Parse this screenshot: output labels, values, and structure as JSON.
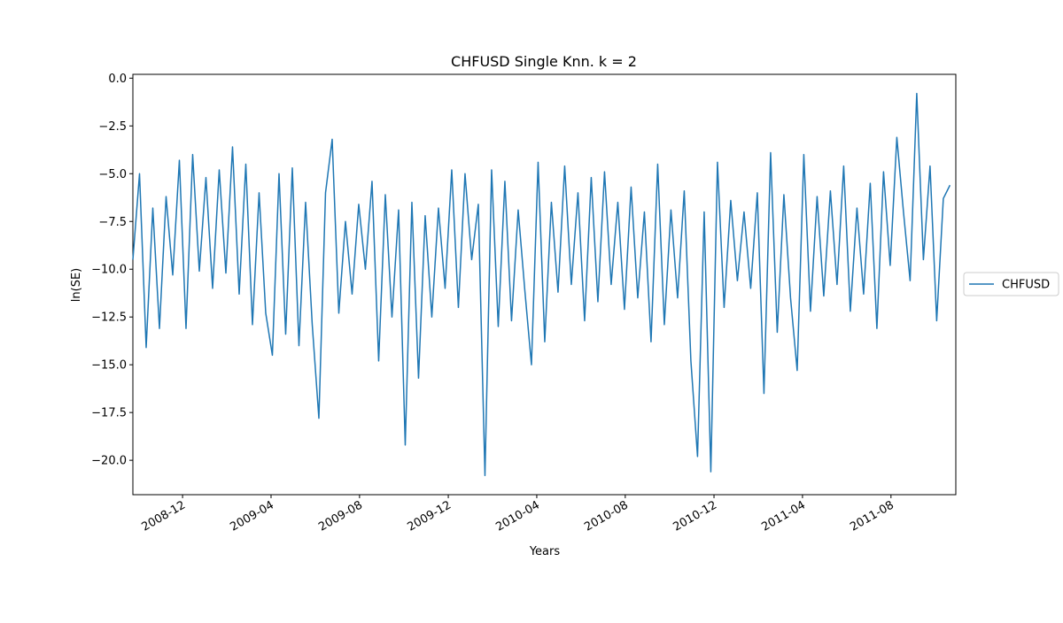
{
  "chart_data": {
    "type": "line",
    "title": "CHFUSD Single Knn. k = 2",
    "x_label": "Years",
    "y_label": "ln(SE)",
    "x": [
      2008.73,
      2008.755,
      2008.78,
      2008.805,
      2008.83,
      2008.855,
      2008.88,
      2008.905,
      2008.93,
      2008.955,
      2008.98,
      2009.005,
      2009.03,
      2009.055,
      2009.08,
      2009.105,
      2009.13,
      2009.155,
      2009.18,
      2009.205,
      2009.23,
      2009.255,
      2009.28,
      2009.305,
      2009.33,
      2009.355,
      2009.38,
      2009.405,
      2009.43,
      2009.455,
      2009.48,
      2009.505,
      2009.53,
      2009.555,
      2009.58,
      2009.605,
      2009.63,
      2009.655,
      2009.68,
      2009.705,
      2009.73,
      2009.755,
      2009.78,
      2009.805,
      2009.83,
      2009.855,
      2009.88,
      2009.905,
      2009.93,
      2009.955,
      2009.98,
      2010.005,
      2010.03,
      2010.055,
      2010.08,
      2010.105,
      2010.13,
      2010.155,
      2010.18,
      2010.205,
      2010.23,
      2010.255,
      2010.28,
      2010.305,
      2010.33,
      2010.355,
      2010.38,
      2010.405,
      2010.43,
      2010.455,
      2010.48,
      2010.505,
      2010.53,
      2010.555,
      2010.58,
      2010.605,
      2010.63,
      2010.655,
      2010.68,
      2010.705,
      2010.73,
      2010.755,
      2010.78,
      2010.805,
      2010.83,
      2010.855,
      2010.88,
      2010.905,
      2010.93,
      2010.955,
      2010.98,
      2011.005,
      2011.03,
      2011.055,
      2011.08,
      2011.105,
      2011.13,
      2011.155,
      2011.18,
      2011.205,
      2011.23,
      2011.255,
      2011.28,
      2011.305,
      2011.33,
      2011.355,
      2011.38,
      2011.405,
      2011.43,
      2011.455,
      2011.48,
      2011.505,
      2011.53,
      2011.555,
      2011.58,
      2011.605,
      2011.63,
      2011.655,
      2011.68,
      2011.705,
      2011.73,
      2011.755,
      2011.78,
      2011.805
    ],
    "series": [
      {
        "name": "CHFUSD",
        "color": "#1f77b4",
        "values": [
          -9.5,
          -5,
          -14.1,
          -6.8,
          -13.1,
          -6.2,
          -10.3,
          -4.3,
          -13.1,
          -4,
          -10.1,
          -5.2,
          -11,
          -4.8,
          -10.2,
          -3.6,
          -11.3,
          -4.5,
          -12.9,
          -6,
          -12.3,
          -14.5,
          -5,
          -13.4,
          -4.7,
          -14,
          -6.5,
          -12.9,
          -17.8,
          -6,
          -3.2,
          -12.3,
          -7.5,
          -11.3,
          -6.6,
          -10,
          -5.4,
          -14.8,
          -6.1,
          -12.5,
          -6.9,
          -19.2,
          -6.5,
          -15.7,
          -7.2,
          -12.5,
          -6.8,
          -11,
          -4.8,
          -12,
          -5,
          -9.5,
          -6.6,
          -20.8,
          -4.8,
          -13,
          -5.4,
          -12.7,
          -6.9,
          -11.1,
          -15,
          -4.4,
          -13.8,
          -6.5,
          -11.2,
          -4.6,
          -10.8,
          -6,
          -12.7,
          -5.2,
          -11.7,
          -4.9,
          -10.8,
          -6.5,
          -12.1,
          -5.7,
          -11.5,
          -7,
          -13.8,
          -4.5,
          -12.9,
          -6.9,
          -11.5,
          -5.9,
          -14.8,
          -19.8,
          -7,
          -20.6,
          -4.4,
          -12,
          -6.4,
          -10.6,
          -7,
          -11,
          -6,
          -16.5,
          -3.9,
          -13.3,
          -6.1,
          -11.5,
          -15.3,
          -4,
          -12.2,
          -6.2,
          -11.4,
          -5.9,
          -10.8,
          -4.6,
          -12.2,
          -6.8,
          -11.3,
          -5.5,
          -13.1,
          -4.9,
          -9.8,
          -3.1,
          -7,
          -10.6,
          -0.8,
          -9.5,
          -4.6,
          -12.7,
          -6.3,
          -5.6
        ]
      }
    ],
    "xlim": [
      2008.73,
      2011.827
    ],
    "xticks": [
      {
        "value": 2008.917,
        "label": "2008-12"
      },
      {
        "value": 2009.25,
        "label": "2009-04"
      },
      {
        "value": 2009.583,
        "label": "2009-08"
      },
      {
        "value": 2009.917,
        "label": "2009-12"
      },
      {
        "value": 2010.25,
        "label": "2010-04"
      },
      {
        "value": 2010.583,
        "label": "2010-08"
      },
      {
        "value": 2010.917,
        "label": "2010-12"
      },
      {
        "value": 2011.25,
        "label": "2011-04"
      },
      {
        "value": 2011.583,
        "label": "2011-08"
      }
    ],
    "ylim": [
      -21.8,
      0.2
    ],
    "yticks": [
      {
        "value": 0,
        "label": "0.0"
      },
      {
        "value": -2.5,
        "label": "−2.5"
      },
      {
        "value": -5,
        "label": "−5.0"
      },
      {
        "value": -7.5,
        "label": "−7.5"
      },
      {
        "value": -10,
        "label": "−10.0"
      },
      {
        "value": -12.5,
        "label": "−12.5"
      },
      {
        "value": -15,
        "label": "−15.0"
      },
      {
        "value": -17.5,
        "label": "−17.5"
      },
      {
        "value": -20,
        "label": "−20.0"
      }
    ],
    "legend": "right"
  }
}
